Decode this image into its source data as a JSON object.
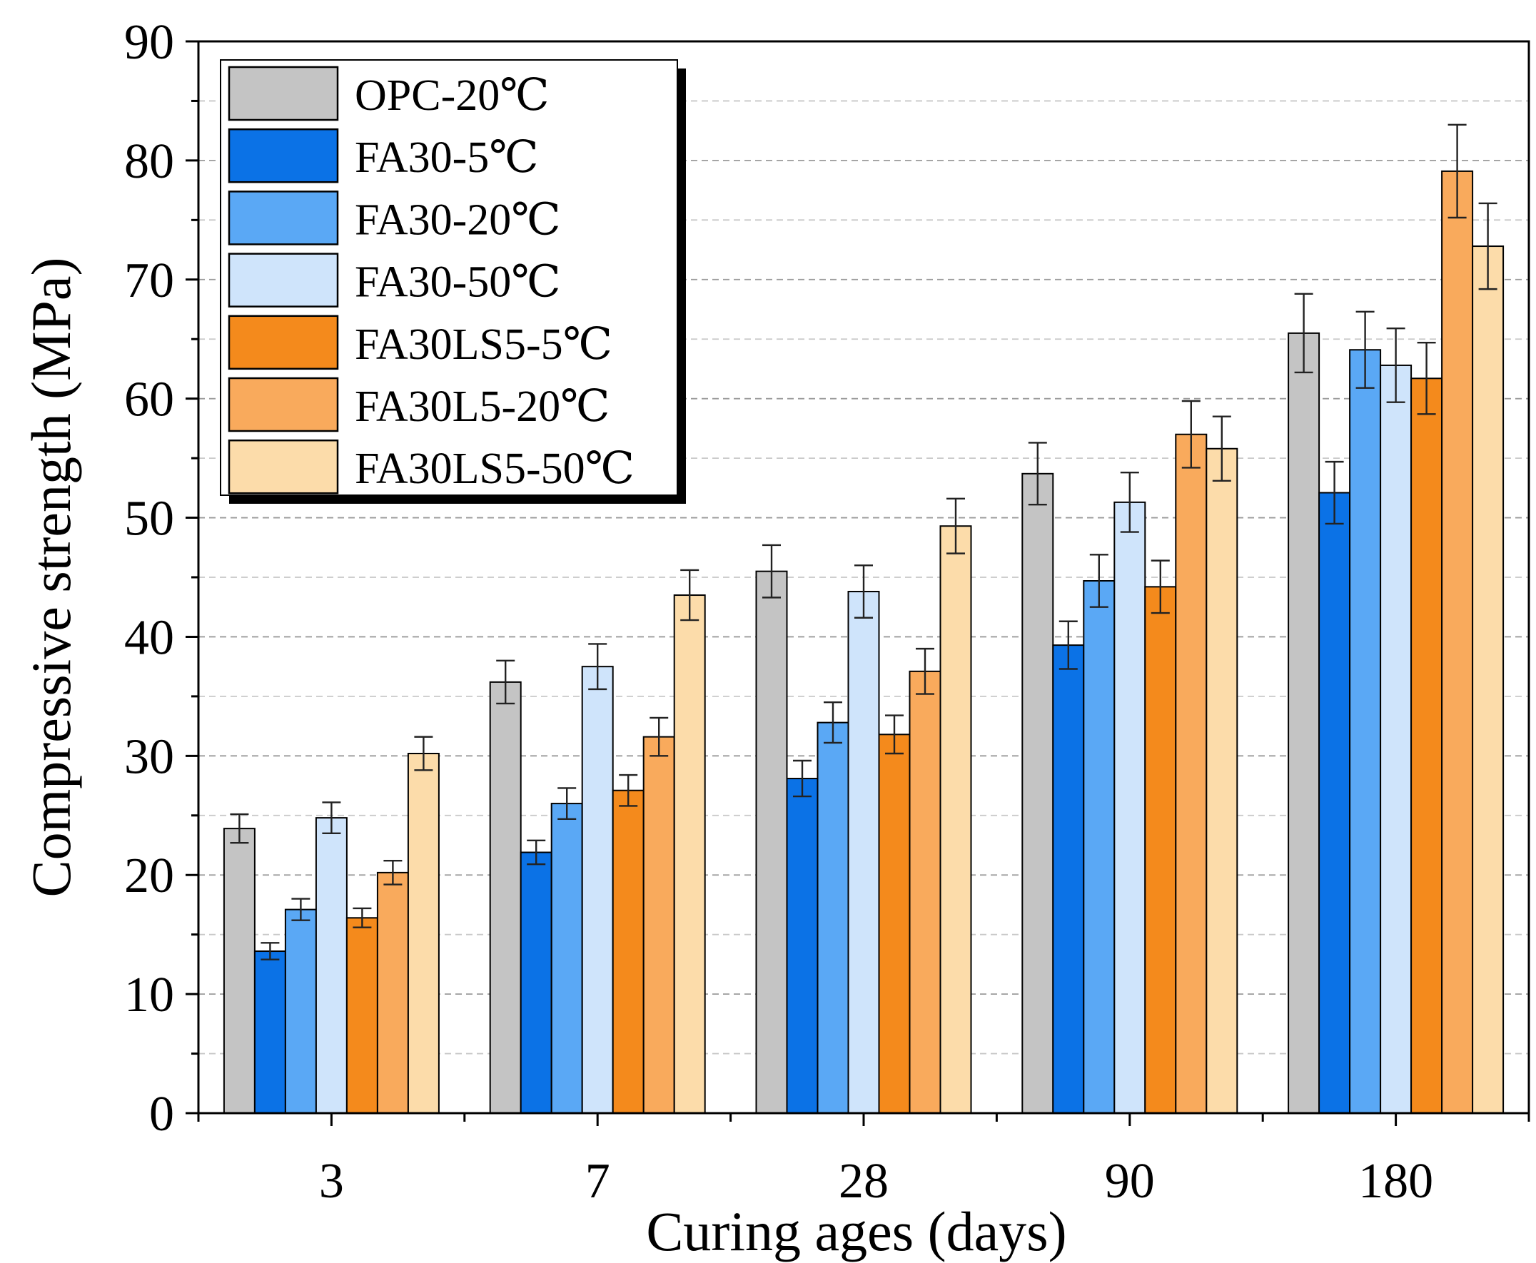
{
  "chart_data": {
    "type": "bar",
    "title": "",
    "xlabel": "Curing ages (days)",
    "ylabel": "Compressive strength (MPa)",
    "ylim": [
      0,
      90
    ],
    "yticks": [
      "0",
      "10",
      "20",
      "30",
      "40",
      "50",
      "60",
      "70",
      "80",
      "90"
    ],
    "categories": [
      "3",
      "7",
      "28",
      "90",
      "180"
    ],
    "legend_position": "top-left",
    "grid": "dashed horizontal",
    "series": [
      {
        "name": "OPC-20℃",
        "color": "#c4c4c4",
        "values": [
          23.9,
          36.2,
          45.5,
          53.7,
          65.5
        ],
        "errors": [
          1.2,
          1.8,
          2.2,
          2.6,
          3.3
        ]
      },
      {
        "name": "FA30-5℃",
        "color": "#0b72e6",
        "values": [
          13.6,
          21.9,
          28.1,
          39.3,
          52.1
        ],
        "errors": [
          0.7,
          1.0,
          1.5,
          2.0,
          2.6
        ]
      },
      {
        "name": "FA30-20℃",
        "color": "#5aa8f5",
        "values": [
          17.1,
          26.0,
          32.8,
          44.7,
          64.1
        ],
        "errors": [
          0.9,
          1.3,
          1.7,
          2.2,
          3.2
        ]
      },
      {
        "name": "FA30-50℃",
        "color": "#cfe4fb",
        "values": [
          24.8,
          37.5,
          43.8,
          51.3,
          62.8
        ],
        "errors": [
          1.3,
          1.9,
          2.2,
          2.5,
          3.1
        ]
      },
      {
        "name": "FA30LS5-5℃",
        "color": "#f48a1c",
        "values": [
          16.4,
          27.1,
          31.8,
          44.2,
          61.7
        ],
        "errors": [
          0.8,
          1.3,
          1.6,
          2.2,
          3.0
        ]
      },
      {
        "name": "FA30L5-20℃",
        "color": "#f9aa5c",
        "values": [
          20.2,
          31.6,
          37.1,
          57.0,
          79.1
        ],
        "errors": [
          1.0,
          1.6,
          1.9,
          2.8,
          3.9
        ]
      },
      {
        "name": "FA30LS5-50℃",
        "color": "#fcdcaa",
        "values": [
          30.2,
          43.5,
          49.3,
          55.8,
          72.8
        ],
        "errors": [
          1.4,
          2.1,
          2.3,
          2.7,
          3.6
        ]
      }
    ]
  }
}
